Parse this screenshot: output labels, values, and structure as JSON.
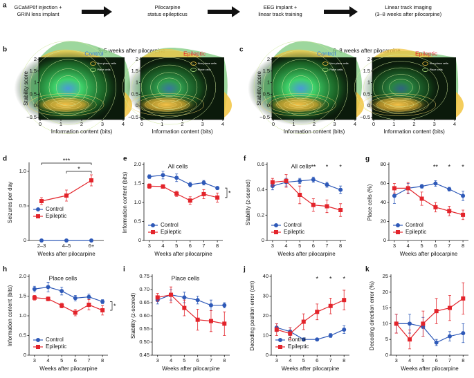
{
  "figure": {
    "panel_labels": [
      "a",
      "b",
      "c",
      "d",
      "e",
      "f",
      "g",
      "h",
      "i",
      "j",
      "k"
    ],
    "workflow": [
      [
        "GCaMP6f injection +",
        "GRIN lens implant"
      ],
      [
        "Pilocarpine",
        "status epilepticus"
      ],
      [
        "EEG implant +",
        "linear track training"
      ],
      [
        "Linear track imaging",
        "(3–8 weeks after pilocarpine)"
      ]
    ],
    "headers": [
      "3–5 weeks after pilocarpine",
      "6–8 weeks after pilocarpine"
    ]
  },
  "chart_data": [
    {
      "type": "density",
      "title": "Control",
      "title_color": "#3a74d6",
      "xlabel": "Information content (bits)",
      "ylabel": "Stability score",
      "xlim": [
        0,
        4
      ],
      "xticks": [
        0,
        1,
        2,
        3,
        4
      ],
      "ylim": [
        -0.5,
        2
      ],
      "yticks": [
        {
          "value": -0.5,
          "label": "−0.5"
        },
        0,
        0.5,
        1,
        1.5,
        2
      ],
      "legend": [
        "Non-place cells",
        "Place cells"
      ]
    },
    {
      "type": "density",
      "title": "Epileptic",
      "title_color": "#e3242b",
      "xlabel": "Information content (bits)",
      "xlim": [
        0,
        4
      ],
      "xticks": [
        0,
        1,
        2,
        3,
        4
      ],
      "ylim": [
        -0.5,
        2
      ],
      "yticks": [
        {
          "value": -0.5,
          "label": "−0.5"
        },
        0,
        0.5,
        1,
        1.5,
        2
      ],
      "legend": [
        "Non-place cells",
        "Place cells"
      ]
    },
    {
      "type": "density",
      "title": "Control",
      "title_color": "#3a74d6",
      "xlabel": "Information content (bits)",
      "ylabel": "Stability score",
      "xlim": [
        0,
        4
      ],
      "xticks": [
        0,
        1,
        2,
        3,
        4
      ],
      "ylim": [
        -0.5,
        2
      ],
      "yticks": [
        {
          "value": -0.5,
          "label": "−0.5"
        },
        0,
        0.5,
        1,
        1.5,
        2
      ],
      "legend": [
        "Non-place cells",
        "Place cells"
      ]
    },
    {
      "type": "density",
      "title": "Epileptic",
      "title_color": "#e3242b",
      "xlabel": "Information content (bits)",
      "xlim": [
        0,
        4
      ],
      "xticks": [
        0,
        1,
        2,
        3,
        4
      ],
      "ylim": [
        -0.5,
        2
      ],
      "yticks": [
        {
          "value": -0.5,
          "label": "−0.5"
        },
        0,
        0.5,
        1,
        1.5,
        2
      ],
      "legend": [
        "Non-place cells",
        "Place cells"
      ]
    },
    {
      "type": "line",
      "xlabel": "Weeks after pilocarpine",
      "ylabel": "Seizures per day",
      "categories": [
        "2–3",
        "4–5",
        "6+"
      ],
      "ylim": [
        0,
        1.1
      ],
      "yticks": [
        0,
        0.5,
        {
          "value": 1,
          "label": "1.0"
        }
      ],
      "legend": "center left",
      "significance": [
        "***",
        "*"
      ],
      "series": [
        {
          "name": "Control",
          "color": "#2e59b8",
          "marker": "circle",
          "values": [
            0,
            0,
            0
          ]
        },
        {
          "name": "Epileptic",
          "color": "#e3242b",
          "marker": "square",
          "values": [
            0.57,
            0.65,
            0.87
          ],
          "errors": [
            0.05,
            0.08,
            0.08
          ]
        }
      ]
    },
    {
      "type": "line",
      "title": "All cells",
      "xlabel": "Weeks after pilocarpine",
      "ylabel": "Information content (bits)",
      "x": [
        3,
        4,
        5,
        6,
        7,
        8
      ],
      "xlim": [
        2.6,
        8.4
      ],
      "xticks": [
        3,
        4,
        5,
        6,
        7,
        8
      ],
      "ylim": [
        0,
        2
      ],
      "yticks": [
        0,
        0.5,
        {
          "value": 1,
          "label": "1.0"
        },
        1.5,
        {
          "value": 2,
          "label": "2.0"
        }
      ],
      "legend": "lower left",
      "significance": "*",
      "series": [
        {
          "name": "Control",
          "color": "#2e59b8",
          "marker": "circle",
          "values": [
            1.68,
            1.72,
            1.65,
            1.47,
            1.52,
            1.38
          ],
          "errors": [
            0.05,
            0.1,
            0.1,
            0.06,
            0.06,
            0.04
          ]
        },
        {
          "name": "Epileptic",
          "color": "#e3242b",
          "marker": "square",
          "values": [
            1.43,
            1.42,
            1.23,
            1.05,
            1.22,
            1.13
          ],
          "errors": [
            0.06,
            0.05,
            0.07,
            0.1,
            0.12,
            0.12
          ]
        }
      ]
    },
    {
      "type": "line",
      "title": "All cells",
      "xlabel": "Weeks after pilocarpine",
      "ylabel": "Stability (z-scored)",
      "x": [
        3,
        4,
        5,
        6,
        7,
        8
      ],
      "xlim": [
        2.6,
        8.4
      ],
      "xticks": [
        3,
        4,
        5,
        6,
        7,
        8
      ],
      "ylim": [
        0,
        0.6
      ],
      "yticks": [
        0,
        0.2,
        0.4,
        0.6
      ],
      "legend": "lower left",
      "significance": [
        {
          "x": 6,
          "text": "**"
        },
        {
          "x": 7,
          "text": "*"
        },
        {
          "x": 8,
          "text": "*"
        }
      ],
      "series": [
        {
          "name": "Control",
          "color": "#2e59b8",
          "marker": "circle",
          "values": [
            0.43,
            0.46,
            0.47,
            0.48,
            0.44,
            0.4
          ],
          "errors": [
            0.03,
            0.03,
            0.02,
            0.02,
            0.02,
            0.03
          ]
        },
        {
          "name": "Epileptic",
          "color": "#e3242b",
          "marker": "square",
          "values": [
            0.46,
            0.47,
            0.36,
            0.28,
            0.27,
            0.24
          ],
          "errors": [
            0.03,
            0.05,
            0.07,
            0.05,
            0.05,
            0.05
          ]
        }
      ]
    },
    {
      "type": "line",
      "xlabel": "Weeks after pilocarpine",
      "ylabel": "Place cells (%)",
      "x": [
        3,
        4,
        5,
        6,
        7,
        8
      ],
      "xlim": [
        2.6,
        8.4
      ],
      "xticks": [
        3,
        4,
        5,
        6,
        7,
        8
      ],
      "ylim": [
        0,
        80
      ],
      "yticks": [
        0,
        20,
        40,
        60,
        80
      ],
      "legend": "lower left",
      "significance": [
        {
          "x": 6,
          "text": "**"
        },
        {
          "x": 7,
          "text": "*"
        },
        {
          "x": 8,
          "text": "*"
        }
      ],
      "series": [
        {
          "name": "Control",
          "color": "#2e59b8",
          "marker": "circle",
          "values": [
            47,
            55,
            57,
            60,
            54,
            47
          ],
          "errors": [
            8,
            5,
            2,
            3,
            2,
            5
          ]
        },
        {
          "name": "Epileptic",
          "color": "#e3242b",
          "marker": "square",
          "values": [
            55,
            55,
            44,
            35,
            31,
            27
          ],
          "errors": [
            5,
            6,
            7,
            5,
            5,
            5
          ]
        }
      ]
    },
    {
      "type": "line",
      "title": "Place cells",
      "xlabel": "Weeks after pilocarpine",
      "ylabel": "Information content (bits)",
      "x": [
        3,
        4,
        5,
        6,
        7,
        8
      ],
      "xlim": [
        2.6,
        8.4
      ],
      "xticks": [
        3,
        4,
        5,
        6,
        7,
        8
      ],
      "ylim": [
        0,
        2
      ],
      "yticks": [
        0,
        0.5,
        {
          "value": 1,
          "label": "1.0"
        },
        1.5,
        {
          "value": 2,
          "label": "2.0"
        }
      ],
      "legend": "lower left",
      "significance": "*",
      "series": [
        {
          "name": "Control",
          "color": "#2e59b8",
          "marker": "circle",
          "values": [
            1.68,
            1.73,
            1.63,
            1.45,
            1.48,
            1.36
          ],
          "errors": [
            0.07,
            0.12,
            0.1,
            0.07,
            0.07,
            0.05
          ]
        },
        {
          "name": "Epileptic",
          "color": "#e3242b",
          "marker": "square",
          "values": [
            1.46,
            1.43,
            1.26,
            1.08,
            1.28,
            1.14
          ],
          "errors": [
            0.06,
            0.05,
            0.06,
            0.08,
            0.13,
            0.12
          ]
        }
      ]
    },
    {
      "type": "line",
      "title": "Place cells",
      "xlabel": "Weeks after pilocarpine",
      "ylabel": "Stability (z-scored)",
      "x": [
        3,
        4,
        5,
        6,
        7,
        8
      ],
      "xlim": [
        2.6,
        8.4
      ],
      "xticks": [
        3,
        4,
        5,
        6,
        7,
        8
      ],
      "ylim": [
        0.45,
        0.75
      ],
      "yticks": [
        0.45,
        {
          "value": 0.5,
          "label": "0.50"
        },
        0.55,
        {
          "value": 0.6,
          "label": "0.60"
        },
        0.65,
        {
          "value": 0.7,
          "label": "0.70"
        },
        0.75
      ],
      "series": [
        {
          "name": "Control",
          "color": "#2e59b8",
          "marker": "circle",
          "values": [
            0.66,
            0.68,
            0.67,
            0.66,
            0.64,
            0.64
          ],
          "errors": [
            0.015,
            0.02,
            0.02,
            0.015,
            0.02,
            0.01
          ]
        },
        {
          "name": "Epileptic",
          "color": "#e3242b",
          "marker": "square",
          "values": [
            0.67,
            0.68,
            0.63,
            0.585,
            0.58,
            0.57
          ],
          "errors": [
            0.015,
            0.03,
            0.03,
            0.04,
            0.04,
            0.045
          ]
        }
      ]
    },
    {
      "type": "line",
      "xlabel": "Weeks after pilocarpine",
      "ylabel": "Decoding position error (cm)",
      "x": [
        3,
        4,
        5,
        6,
        7,
        8
      ],
      "xlim": [
        2.6,
        8.4
      ],
      "xticks": [
        3,
        4,
        5,
        6,
        7,
        8
      ],
      "ylim": [
        0,
        40
      ],
      "yticks": [
        0,
        10,
        20,
        30,
        40
      ],
      "legend": "lower left",
      "significance": [
        {
          "x": 6,
          "text": "*"
        },
        {
          "x": 7,
          "text": "*"
        },
        {
          "x": 8,
          "text": "*"
        }
      ],
      "series": [
        {
          "name": "Control",
          "color": "#2e59b8",
          "marker": "circle",
          "values": [
            14,
            12,
            8,
            8,
            10,
            13
          ],
          "errors": [
            2,
            2,
            0.5,
            0.5,
            1,
            2
          ]
        },
        {
          "name": "Epileptic",
          "color": "#e3242b",
          "marker": "square",
          "values": [
            13,
            11,
            17,
            22,
            25,
            28
          ],
          "errors": [
            3,
            3,
            4,
            4,
            4,
            5
          ]
        }
      ]
    },
    {
      "type": "line",
      "xlabel": "Weeks after pilocarpine",
      "ylabel": "Decoding direction error (%)",
      "x": [
        3,
        4,
        5,
        6,
        7,
        8
      ],
      "xlim": [
        2.6,
        8.4
      ],
      "xticks": [
        3,
        4,
        5,
        6,
        7,
        8
      ],
      "ylim": [
        0,
        25
      ],
      "yticks": [
        0,
        5,
        10,
        15,
        20,
        25
      ],
      "series": [
        {
          "name": "Control",
          "color": "#2e59b8",
          "marker": "circle",
          "values": [
            10,
            10,
            9,
            4,
            6,
            7
          ],
          "errors": [
            3,
            3,
            3,
            1,
            1.5,
            3
          ]
        },
        {
          "name": "Epileptic",
          "color": "#e3242b",
          "marker": "square",
          "values": [
            10,
            5,
            10,
            14,
            15,
            18
          ],
          "errors": [
            3,
            3,
            4,
            4,
            4,
            5
          ]
        }
      ]
    }
  ]
}
